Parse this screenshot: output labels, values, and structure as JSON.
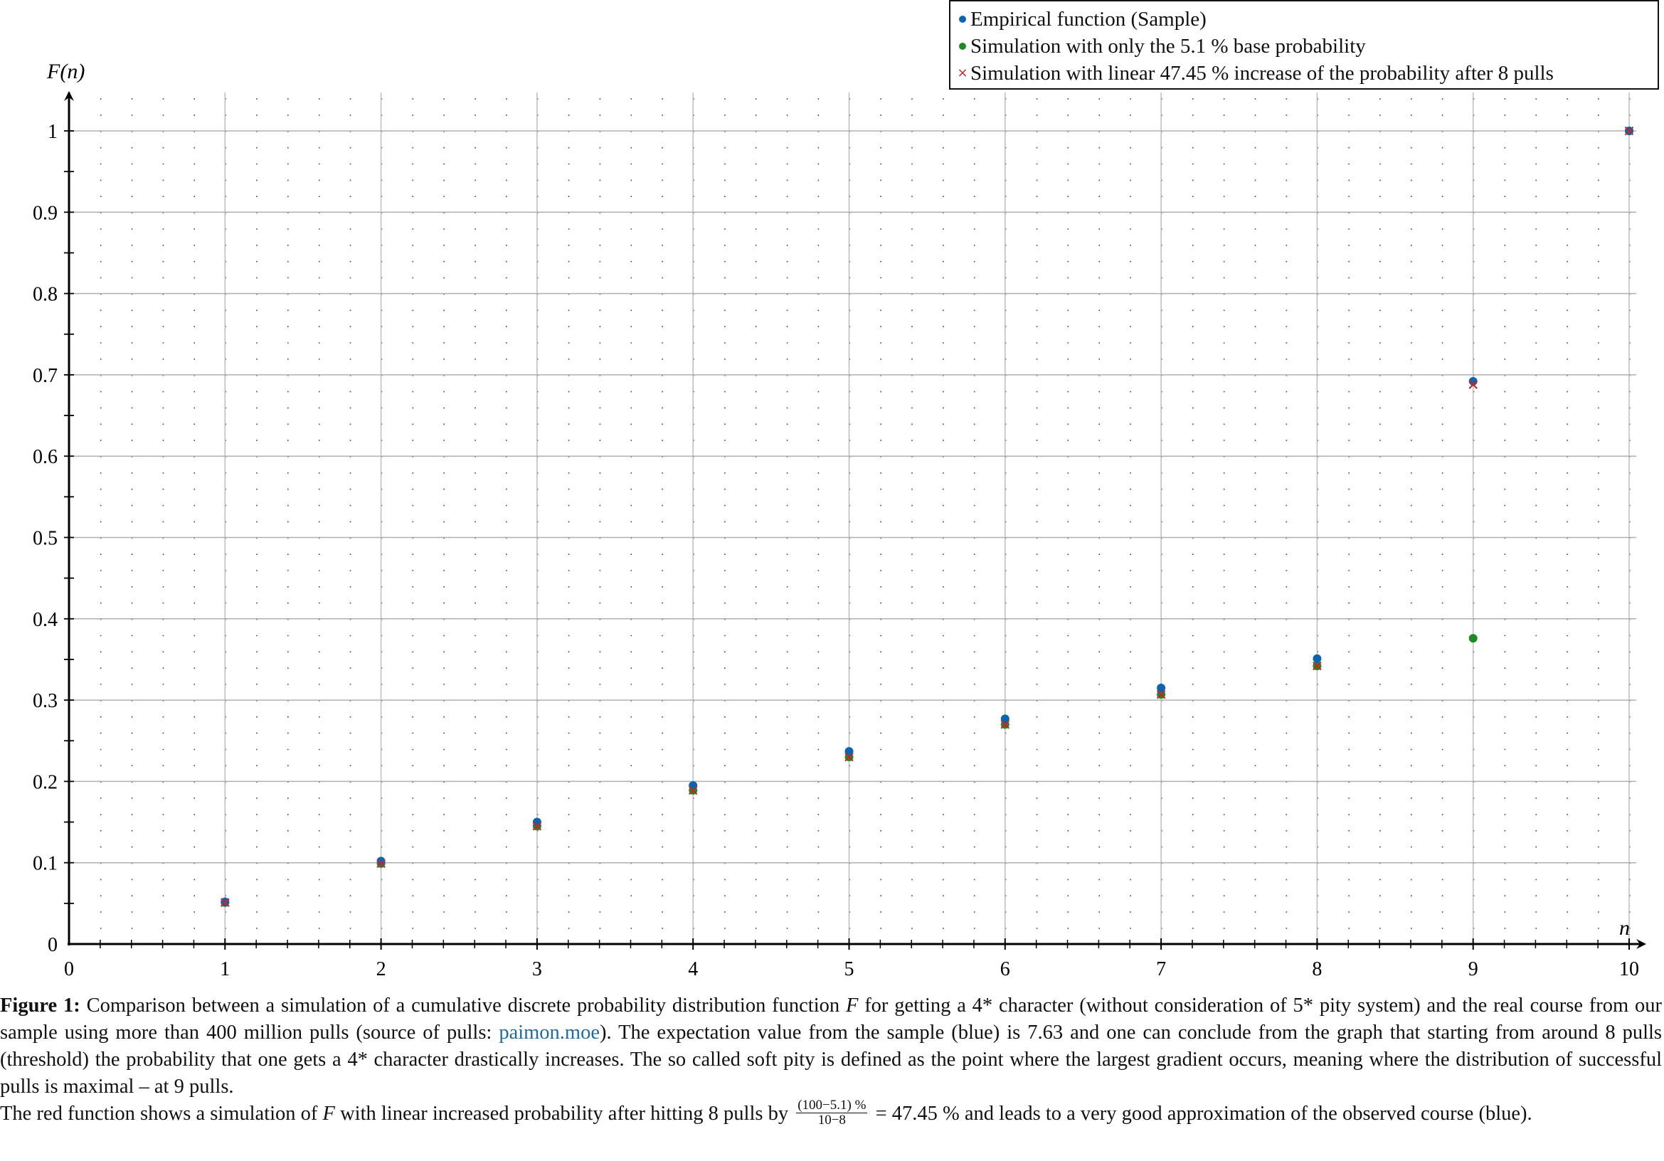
{
  "chart_data": {
    "type": "scatter",
    "title": "",
    "xlabel": "n",
    "ylabel": "F(n)",
    "xlim": [
      0,
      10
    ],
    "ylim": [
      0,
      1.05
    ],
    "x_ticks": [
      "0",
      "1",
      "2",
      "3",
      "4",
      "5",
      "6",
      "7",
      "8",
      "9",
      "10"
    ],
    "y_ticks": [
      "0",
      "0.1",
      "0.2",
      "0.3",
      "0.4",
      "0.5",
      "0.6",
      "0.7",
      "0.8",
      "0.9",
      "1"
    ],
    "grid": {
      "major": true,
      "minor_dotted": true,
      "minor_x_step": 0.2,
      "minor_y_step": 0.02
    },
    "legend_position": "top-right",
    "x": [
      1,
      2,
      3,
      4,
      5,
      6,
      7,
      8,
      9,
      10
    ],
    "series": [
      {
        "name": "Empirical function (Sample)",
        "marker": "dot",
        "color": "#0a64b4",
        "values": [
          0.052,
          0.102,
          0.15,
          0.195,
          0.237,
          0.277,
          0.315,
          0.351,
          0.692,
          1.0
        ]
      },
      {
        "name": "Simulation with only the 5.1 % base probability",
        "marker": "dot",
        "color": "#1e8a23",
        "values": [
          0.051,
          0.099,
          0.145,
          0.189,
          0.23,
          0.27,
          0.307,
          0.342,
          0.376,
          1.0
        ]
      },
      {
        "name": "Simulation with linear 47.45 % increase of the probability after 8 pulls",
        "marker": "cross",
        "color": "#c0282a",
        "values": [
          0.051,
          0.099,
          0.145,
          0.189,
          0.23,
          0.27,
          0.307,
          0.342,
          0.688,
          1.0
        ]
      }
    ]
  },
  "legend": {
    "items": [
      {
        "label": "Empirical function (Sample)",
        "color": "#0a64b4",
        "marker": "dot"
      },
      {
        "label": "Simulation with only the 5.1 % base probability",
        "color": "#1e8a23",
        "marker": "dot"
      },
      {
        "label": "Simulation with linear 47.45 % increase of the probability after 8 pulls",
        "color": "#c0282a",
        "marker": "cross"
      }
    ]
  },
  "caption": {
    "figure_label": "Figure 1:",
    "p1_a": " Comparison between a simulation of a cumulative discrete probability distribution function ",
    "p1_F": "F",
    "p1_b": " for getting a 4* character (without consideration of 5* pity system) and the real course from our sample using more than 400 million pulls (source of pulls: ",
    "link": "paimon.moe",
    "p1_c": "). The expectation value from the sample (blue) is 7.63 and one can conclude from the graph that starting from around 8 pulls (threshold) the probability that one gets a 4* character drastically increases. The so called soft pity is defined as the point where the largest gradient occurs, meaning where the distribution of successful pulls is maximal – at 9 pulls.",
    "p2_a": "The red function shows a simulation of ",
    "p2_F": "F",
    "p2_b": " with linear increased probability after hitting 8 pulls by ",
    "frac_num": "(100−5.1) %",
    "frac_den": "10−8",
    "p2_c": " = 47.45 % and leads to a very good approximation of the observed course (blue)."
  }
}
